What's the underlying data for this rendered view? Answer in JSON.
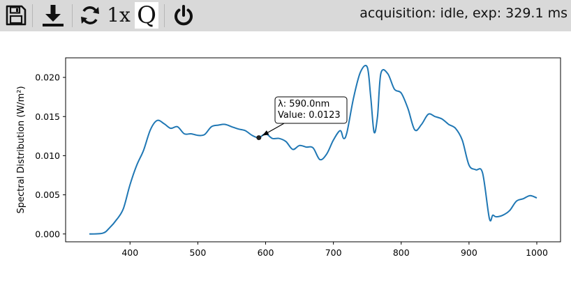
{
  "toolbar": {
    "buttons": [
      {
        "name": "save",
        "icon": "floppy-disk-icon"
      },
      {
        "name": "download",
        "icon": "download-arrow-icon"
      },
      {
        "name": "refresh",
        "icon": "refresh-cycle-icon"
      },
      {
        "name": "zoom",
        "label": "1x"
      },
      {
        "name": "quality",
        "label": "Q"
      },
      {
        "name": "power",
        "icon": "power-icon"
      }
    ],
    "status": "acquisition: idle, exp: 329.1 ms"
  },
  "chart_data": {
    "type": "line",
    "title": "",
    "xlabel": "",
    "ylabel": "Spectral Distribution (W/m²)",
    "xlim": [
      305,
      1035
    ],
    "ylim": [
      -0.001,
      0.0225
    ],
    "xticks": [
      400,
      500,
      600,
      700,
      800,
      900,
      1000
    ],
    "yticks": [
      "0.000",
      "0.005",
      "0.010",
      "0.015",
      "0.020"
    ],
    "grid": false,
    "line_color": "#1f77b4",
    "series": [
      {
        "x": [
          340,
          360,
          370,
          380,
          390,
          400,
          410,
          420,
          430,
          440,
          450,
          460,
          470,
          480,
          490,
          500,
          510,
          520,
          530,
          540,
          550,
          560,
          570,
          580,
          590,
          600,
          610,
          620,
          630,
          640,
          650,
          660,
          670,
          680,
          690,
          700,
          710,
          715,
          720,
          730,
          740,
          750,
          755,
          760,
          765,
          770,
          780,
          790,
          800,
          810,
          820,
          830,
          840,
          850,
          860,
          870,
          880,
          890,
          900,
          910,
          920,
          930,
          935,
          940,
          950,
          960,
          970,
          980,
          990,
          1000
        ],
        "y": [
          0.0,
          0.0001,
          0.0008,
          0.0018,
          0.0032,
          0.0063,
          0.0088,
          0.0107,
          0.0133,
          0.0145,
          0.0141,
          0.0135,
          0.0137,
          0.0128,
          0.0128,
          0.0126,
          0.0127,
          0.0137,
          0.0139,
          0.014,
          0.0137,
          0.0134,
          0.0132,
          0.0126,
          0.0123,
          0.0128,
          0.0122,
          0.0122,
          0.0118,
          0.0108,
          0.0113,
          0.0111,
          0.011,
          0.0095,
          0.0102,
          0.012,
          0.0132,
          0.0122,
          0.013,
          0.0175,
          0.0207,
          0.0213,
          0.0175,
          0.013,
          0.015,
          0.0205,
          0.0205,
          0.0185,
          0.018,
          0.016,
          0.0133,
          0.014,
          0.0153,
          0.015,
          0.0147,
          0.014,
          0.0135,
          0.012,
          0.0088,
          0.0082,
          0.0078,
          0.002,
          0.0024,
          0.0022,
          0.0024,
          0.003,
          0.0042,
          0.0045,
          0.0049,
          0.0046
        ]
      }
    ],
    "annotation": {
      "lambda_text": "λ: 590.0nm",
      "value_text": "Value: 0.0123",
      "point": {
        "x": 590,
        "y": 0.0123
      }
    }
  }
}
